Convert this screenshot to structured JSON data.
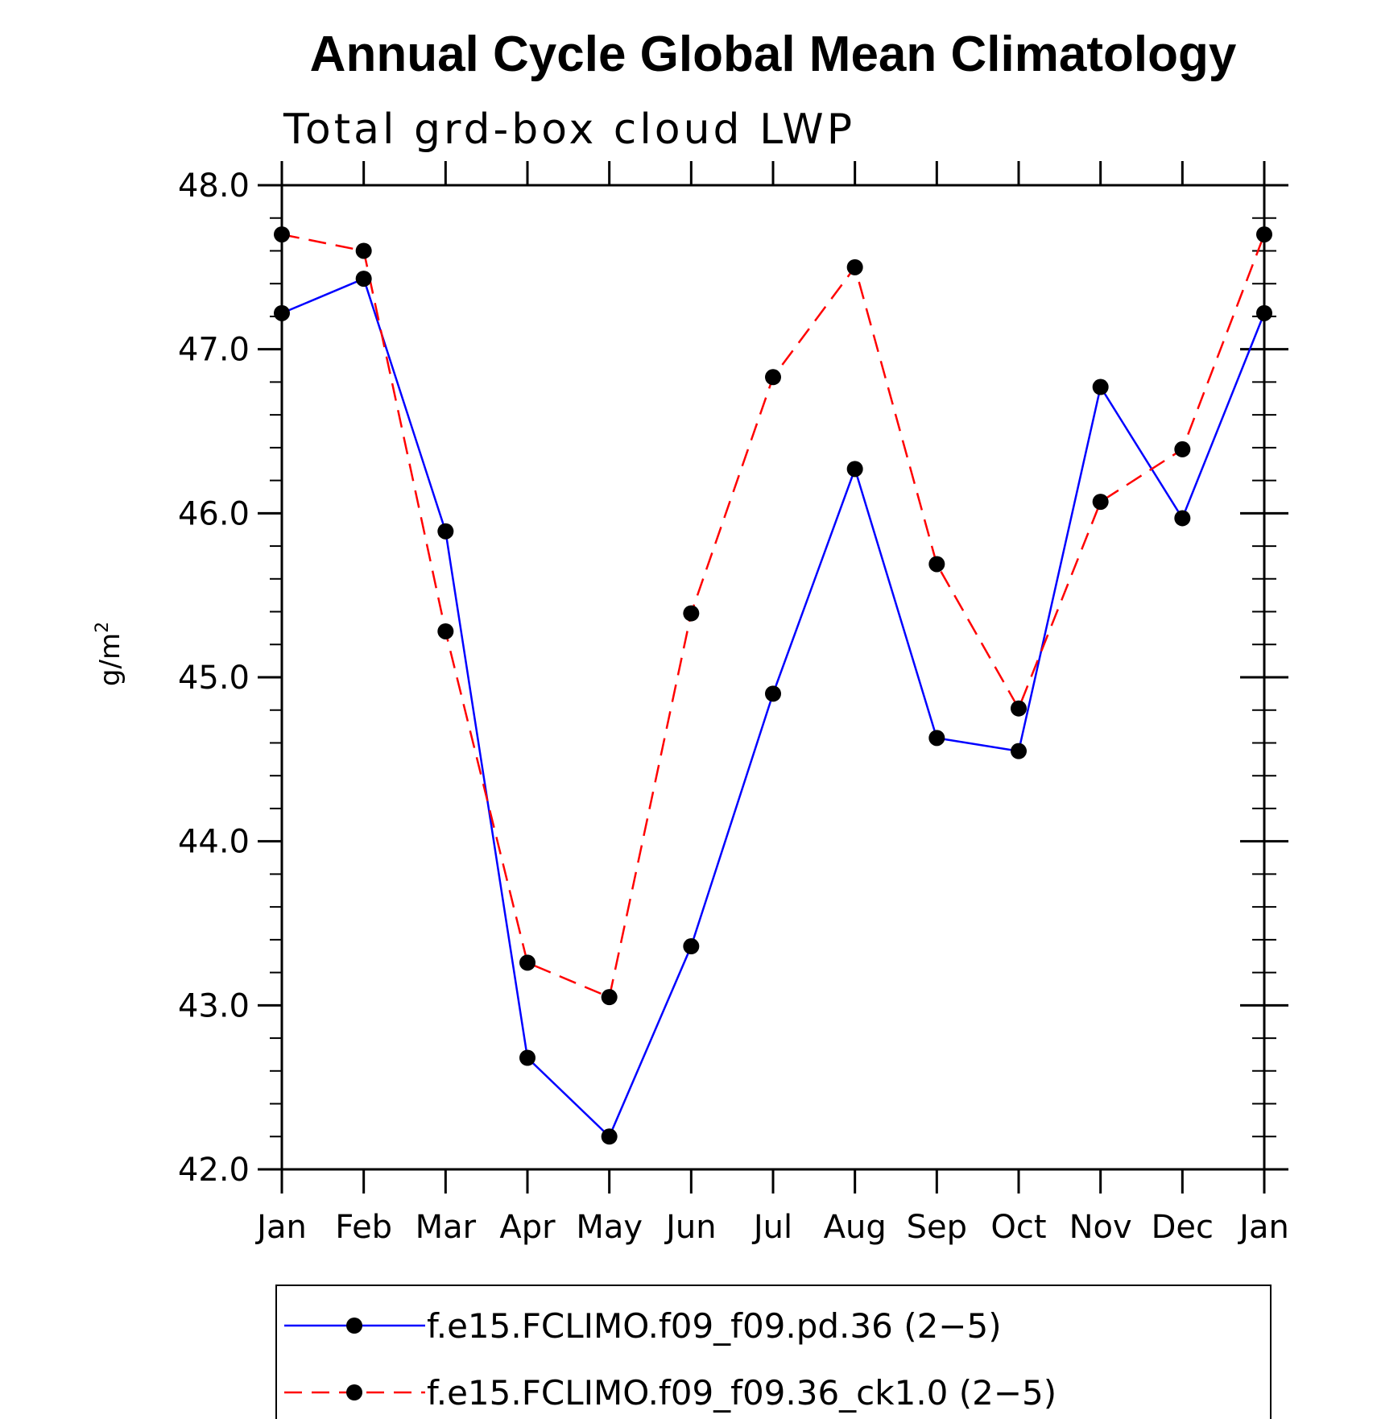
{
  "chart_data": {
    "type": "line",
    "title": "Annual Cycle Global Mean Climatology",
    "subtitle": "Total grd-box cloud LWP",
    "ylabel": "g/m",
    "ylabel_superscript": "2",
    "xlabel": "",
    "categories": [
      "Jan",
      "Feb",
      "Mar",
      "Apr",
      "May",
      "Jun",
      "Jul",
      "Aug",
      "Sep",
      "Oct",
      "Nov",
      "Dec",
      "Jan"
    ],
    "ylim": [
      42.0,
      48.0
    ],
    "yticks": [
      "42.0",
      "43.0",
      "44.0",
      "45.0",
      "46.0",
      "47.0",
      "48.0"
    ],
    "ytick_values": [
      42,
      43,
      44,
      45,
      46,
      47,
      48
    ],
    "grid": false,
    "legend_position": "bottom",
    "series": [
      {
        "name": "f.e15.FCLIMO.f09_f09.pd.36 (2−5)",
        "color": "#0000ff",
        "dash": "solid",
        "values": [
          47.22,
          47.43,
          45.89,
          42.68,
          42.2,
          43.36,
          44.9,
          46.27,
          44.63,
          44.55,
          46.77,
          45.97,
          47.22
        ]
      },
      {
        "name": "f.e15.FCLIMO.f09_f09.36_ck1.0 (2−5)",
        "color": "#ff0000",
        "dash": "dashed",
        "values": [
          47.7,
          47.6,
          45.28,
          43.26,
          43.05,
          45.39,
          46.83,
          47.5,
          45.69,
          44.81,
          46.07,
          46.39,
          47.7
        ]
      }
    ]
  }
}
